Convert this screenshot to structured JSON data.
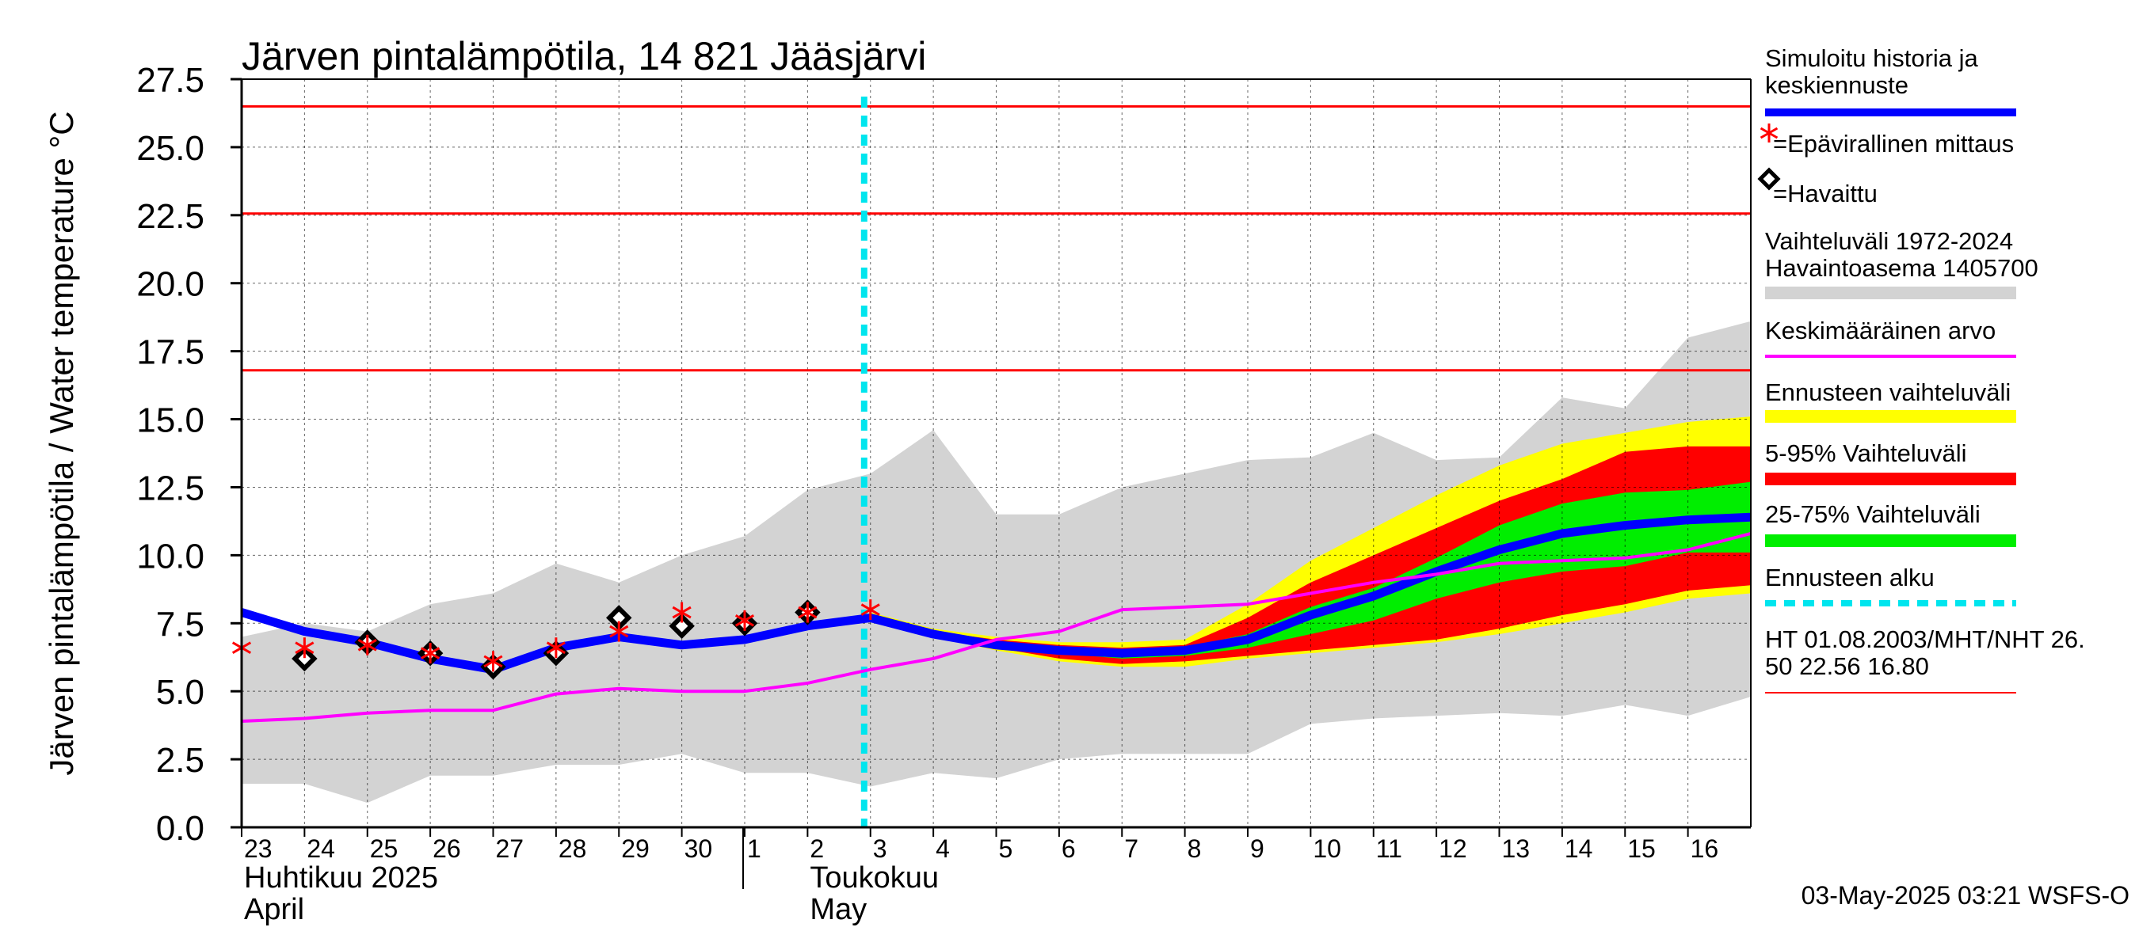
{
  "chart_data": {
    "type": "line",
    "title": "Järven pintalämpötila, 14 821 Jääsjärvi",
    "ylabel": "Järven pintalämpötila / Water temperature °C",
    "ylim": [
      0,
      27.5
    ],
    "yticks": [
      "0.0",
      "2.5",
      "5.0",
      "7.5",
      "10.0",
      "12.5",
      "15.0",
      "17.5",
      "20.0",
      "22.5",
      "25.0",
      "27.5"
    ],
    "x_days": [
      "23",
      "24",
      "25",
      "26",
      "27",
      "28",
      "29",
      "30",
      "1",
      "2",
      "3",
      "4",
      "5",
      "6",
      "7",
      "8",
      "9",
      "10",
      "11",
      "12",
      "13",
      "14",
      "15",
      "16"
    ],
    "month_labels": [
      {
        "fi": "Huhtikuu  2025",
        "en": "April",
        "start_index": 0
      },
      {
        "fi": "Toukokuu",
        "en": "May",
        "start_index": 9
      }
    ],
    "grid": true,
    "forecast_start_index": 10,
    "reference_lines": [
      {
        "label": "HT",
        "value": 26.5
      },
      {
        "label": "MHT",
        "value": 22.56
      },
      {
        "label": "NHT",
        "value": 16.8
      }
    ],
    "historical_range_1972_2024": {
      "x": [
        0,
        1,
        2,
        3,
        4,
        5,
        6,
        7,
        8,
        9,
        10,
        11,
        12,
        13,
        14,
        15,
        16,
        17,
        18,
        19,
        20,
        21,
        22,
        23,
        24
      ],
      "lower": [
        1.6,
        1.6,
        0.9,
        1.9,
        1.9,
        2.3,
        2.3,
        2.7,
        2.0,
        2.0,
        1.5,
        2.0,
        1.8,
        2.5,
        2.7,
        2.7,
        2.7,
        3.8,
        4.0,
        4.1,
        4.2,
        4.1,
        4.5,
        4.1,
        4.8
      ],
      "upper": [
        7.0,
        7.5,
        7.2,
        8.2,
        8.6,
        9.7,
        9.0,
        10.0,
        10.7,
        12.4,
        13.0,
        14.6,
        11.5,
        11.5,
        12.5,
        13.0,
        13.5,
        13.6,
        14.5,
        13.5,
        13.6,
        15.8,
        15.4,
        18.0,
        18.6
      ]
    },
    "series": [
      {
        "name": "Simuloitu historia ja keskiennuste",
        "color": "#0000ff",
        "x": [
          0,
          1,
          2,
          3,
          4,
          5,
          6,
          7,
          8,
          9,
          10,
          11,
          12,
          13,
          14,
          15,
          16,
          17,
          18,
          19,
          20,
          21,
          22,
          23,
          24
        ],
        "y": [
          7.9,
          7.2,
          6.8,
          6.2,
          5.8,
          6.6,
          7.0,
          6.7,
          6.9,
          7.4,
          7.7,
          7.1,
          6.7,
          6.5,
          6.4,
          6.5,
          6.9,
          7.8,
          8.5,
          9.4,
          10.2,
          10.8,
          11.1,
          11.3,
          11.4
        ]
      },
      {
        "name": "Keskimääräinen arvo",
        "color": "#ff00ff",
        "x": [
          0,
          1,
          2,
          3,
          4,
          5,
          6,
          7,
          8,
          9,
          10,
          11,
          12,
          13,
          14,
          15,
          16,
          17,
          18,
          19,
          20,
          21,
          22,
          23,
          24
        ],
        "y": [
          3.9,
          4.0,
          4.2,
          4.3,
          4.3,
          4.9,
          5.1,
          5.0,
          5.0,
          5.3,
          5.8,
          6.2,
          6.9,
          7.2,
          8.0,
          8.1,
          8.2,
          8.6,
          9.0,
          9.3,
          9.7,
          9.8,
          9.9,
          10.2,
          10.8
        ]
      }
    ],
    "observed": {
      "name": "Havaittu",
      "x": [
        1,
        2,
        3,
        4,
        5,
        6,
        7,
        8,
        9
      ],
      "y": [
        6.2,
        6.8,
        6.4,
        5.9,
        6.4,
        7.7,
        7.4,
        7.5,
        7.9
      ]
    },
    "unofficial": {
      "name": "Epävirallinen mittaus",
      "x": [
        0,
        1,
        2,
        3,
        4,
        5,
        6,
        7,
        8,
        9,
        10
      ],
      "y": [
        6.6,
        6.6,
        6.7,
        6.4,
        6.1,
        6.6,
        7.2,
        7.9,
        7.6,
        7.9,
        8.0
      ]
    },
    "forecast_bands": {
      "x": [
        10,
        11,
        12,
        13,
        14,
        15,
        16,
        17,
        18,
        19,
        20,
        21,
        22,
        23,
        24
      ],
      "yellow_lower": [
        7.6,
        7.0,
        6.5,
        6.1,
        5.9,
        5.9,
        6.2,
        6.4,
        6.6,
        6.8,
        7.1,
        7.5,
        7.9,
        8.4,
        8.6
      ],
      "yellow_upper": [
        7.9,
        7.3,
        7.0,
        6.8,
        6.8,
        6.9,
        8.2,
        9.8,
        11.0,
        12.2,
        13.3,
        14.1,
        14.5,
        14.9,
        15.1
      ],
      "red_lower": [
        7.6,
        7.0,
        6.6,
        6.2,
        6.0,
        6.1,
        6.3,
        6.5,
        6.7,
        6.9,
        7.3,
        7.8,
        8.2,
        8.7,
        8.9
      ],
      "red_upper": [
        7.8,
        7.2,
        6.9,
        6.7,
        6.6,
        6.7,
        7.7,
        9.0,
        10.0,
        11.0,
        12.0,
        12.8,
        13.8,
        14.0,
        14.0
      ],
      "green_lower": [
        7.7,
        7.1,
        6.7,
        6.4,
        6.2,
        6.3,
        6.6,
        7.1,
        7.6,
        8.4,
        9.0,
        9.4,
        9.6,
        10.1,
        10.1
      ],
      "green_upper": [
        7.8,
        7.2,
        6.8,
        6.6,
        6.5,
        6.6,
        7.1,
        8.1,
        8.8,
        9.9,
        11.1,
        11.9,
        12.3,
        12.4,
        12.7
      ]
    },
    "legend": {
      "placement": "right",
      "items": [
        {
          "label_lines": [
            "Simuloitu historia ja",
            "keskiennuste"
          ],
          "kind": "line",
          "color": "#0000ff"
        },
        {
          "label_lines": [
            "=Epävirallinen mittaus"
          ],
          "kind": "star",
          "color": "#ff0000"
        },
        {
          "label_lines": [
            "=Havaittu"
          ],
          "kind": "diamond",
          "color": "#000000"
        },
        {
          "label_lines": [
            "Vaihteluväli 1972-2024",
            " Havaintoasema 1405700"
          ],
          "kind": "band",
          "color": "#d3d3d3"
        },
        {
          "label_lines": [
            "Keskimääräinen arvo"
          ],
          "kind": "line",
          "color": "#ff00ff"
        },
        {
          "label_lines": [
            "Ennusteen vaihteluväli"
          ],
          "kind": "band",
          "color": "#ffff00"
        },
        {
          "label_lines": [
            "5-95% Vaihteluväli"
          ],
          "kind": "band",
          "color": "#ff0000"
        },
        {
          "label_lines": [
            "25-75% Vaihteluväli"
          ],
          "kind": "band",
          "color": "#00ee00"
        },
        {
          "label_lines": [
            "Ennusteen alku"
          ],
          "kind": "dashed",
          "color": "#00e5ee"
        },
        {
          "label_lines": [
            "HT 01.08.2003/MHT/NHT 26.",
            "50 22.56 16.80"
          ],
          "kind": "line",
          "color": "#ff0000"
        }
      ]
    },
    "footer": "03-May-2025 03:21 WSFS-O"
  }
}
